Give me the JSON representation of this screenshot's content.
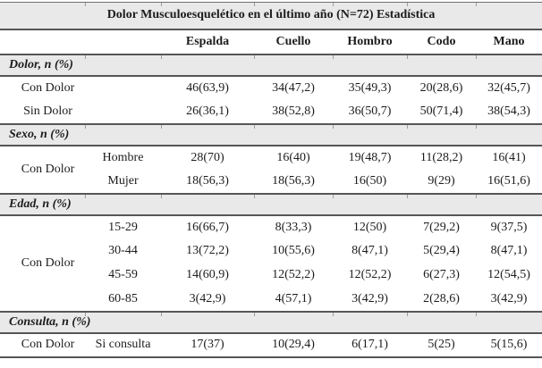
{
  "table": {
    "title": "Dolor Musculoesquelético en el último año (N=72) Estadística",
    "columns": [
      "Espalda",
      "Cuello",
      "Hombro",
      "Codo",
      "Mano"
    ],
    "sections": [
      {
        "header": "Dolor, n (%)",
        "rows": [
          {
            "label": "Con Dolor",
            "label_rowspan": 1,
            "sub": "",
            "values": [
              "46(63,9)",
              "34(47,2)",
              "35(49,3)",
              "20(28,6)",
              "32(45,7)"
            ]
          },
          {
            "label": "Sin Dolor",
            "label_rowspan": 1,
            "sub": "",
            "values": [
              "26(36,1)",
              "38(52,8)",
              "36(50,7)",
              "50(71,4)",
              "38(54,3)"
            ]
          }
        ]
      },
      {
        "header": "Sexo, n (%)",
        "rows": [
          {
            "label": "Con Dolor",
            "label_rowspan": 2,
            "sub": "Hombre",
            "values": [
              "28(70)",
              "16(40)",
              "19(48,7)",
              "11(28,2)",
              "16(41)"
            ]
          },
          {
            "label": null,
            "label_rowspan": 0,
            "sub": "Mujer",
            "values": [
              "18(56,3)",
              "18(56,3)",
              "16(50)",
              "9(29)",
              "16(51,6)"
            ]
          }
        ]
      },
      {
        "header": "Edad, n (%)",
        "rows": [
          {
            "label": "Con Dolor",
            "label_rowspan": 4,
            "sub": "15-29",
            "values": [
              "16(66,7)",
              "8(33,3)",
              "12(50)",
              "7(29,2)",
              "9(37,5)"
            ]
          },
          {
            "label": null,
            "label_rowspan": 0,
            "sub": "30-44",
            "values": [
              "13(72,2)",
              "10(55,6)",
              "8(47,1)",
              "5(29,4)",
              "8(47,1)"
            ]
          },
          {
            "label": null,
            "label_rowspan": 0,
            "sub": "45-59",
            "values": [
              "14(60,9)",
              "12(52,2)",
              "12(52,2)",
              "6(27,3)",
              "12(54,5)"
            ]
          },
          {
            "label": null,
            "label_rowspan": 0,
            "sub": "60-85",
            "values": [
              "3(42,9)",
              "4(57,1)",
              "3(42,9)",
              "2(28,6)",
              "3(42,9)"
            ]
          }
        ]
      },
      {
        "header": "Consulta, n (%)",
        "rows": [
          {
            "label": "Con Dolor",
            "label_rowspan": 1,
            "sub": "Si consulta",
            "values": [
              "17(37)",
              "10(29,4)",
              "6(17,1)",
              "5(25)",
              "5(15,6)"
            ]
          }
        ]
      }
    ],
    "colors": {
      "shade_gray": "#e9e9e9",
      "rule_dark": "#565656",
      "text": "#1c1c1c"
    }
  }
}
